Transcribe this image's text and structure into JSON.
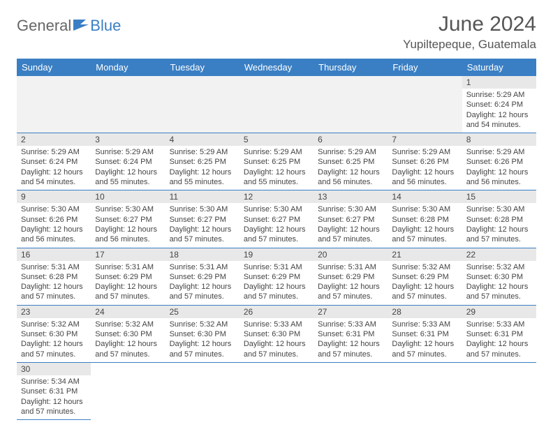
{
  "brand": {
    "part1": "General",
    "part2": "Blue",
    "icon_color": "#3a7fc4",
    "text_color": "#666666"
  },
  "title": "June 2024",
  "location": "Yupiltepeque, Guatemala",
  "colors": {
    "header_bg": "#3a7fc4",
    "header_text": "#ffffff",
    "daynum_bg": "#e8e8e8",
    "divider": "#3a7fc4",
    "body_text": "#444444"
  },
  "weekdays": [
    "Sunday",
    "Monday",
    "Tuesday",
    "Wednesday",
    "Thursday",
    "Friday",
    "Saturday"
  ],
  "weeks": [
    [
      null,
      null,
      null,
      null,
      null,
      null,
      {
        "n": "1",
        "sunrise": "Sunrise: 5:29 AM",
        "sunset": "Sunset: 6:24 PM",
        "daylight": "Daylight: 12 hours and 54 minutes."
      }
    ],
    [
      {
        "n": "2",
        "sunrise": "Sunrise: 5:29 AM",
        "sunset": "Sunset: 6:24 PM",
        "daylight": "Daylight: 12 hours and 54 minutes."
      },
      {
        "n": "3",
        "sunrise": "Sunrise: 5:29 AM",
        "sunset": "Sunset: 6:24 PM",
        "daylight": "Daylight: 12 hours and 55 minutes."
      },
      {
        "n": "4",
        "sunrise": "Sunrise: 5:29 AM",
        "sunset": "Sunset: 6:25 PM",
        "daylight": "Daylight: 12 hours and 55 minutes."
      },
      {
        "n": "5",
        "sunrise": "Sunrise: 5:29 AM",
        "sunset": "Sunset: 6:25 PM",
        "daylight": "Daylight: 12 hours and 55 minutes."
      },
      {
        "n": "6",
        "sunrise": "Sunrise: 5:29 AM",
        "sunset": "Sunset: 6:25 PM",
        "daylight": "Daylight: 12 hours and 56 minutes."
      },
      {
        "n": "7",
        "sunrise": "Sunrise: 5:29 AM",
        "sunset": "Sunset: 6:26 PM",
        "daylight": "Daylight: 12 hours and 56 minutes."
      },
      {
        "n": "8",
        "sunrise": "Sunrise: 5:29 AM",
        "sunset": "Sunset: 6:26 PM",
        "daylight": "Daylight: 12 hours and 56 minutes."
      }
    ],
    [
      {
        "n": "9",
        "sunrise": "Sunrise: 5:30 AM",
        "sunset": "Sunset: 6:26 PM",
        "daylight": "Daylight: 12 hours and 56 minutes."
      },
      {
        "n": "10",
        "sunrise": "Sunrise: 5:30 AM",
        "sunset": "Sunset: 6:27 PM",
        "daylight": "Daylight: 12 hours and 56 minutes."
      },
      {
        "n": "11",
        "sunrise": "Sunrise: 5:30 AM",
        "sunset": "Sunset: 6:27 PM",
        "daylight": "Daylight: 12 hours and 57 minutes."
      },
      {
        "n": "12",
        "sunrise": "Sunrise: 5:30 AM",
        "sunset": "Sunset: 6:27 PM",
        "daylight": "Daylight: 12 hours and 57 minutes."
      },
      {
        "n": "13",
        "sunrise": "Sunrise: 5:30 AM",
        "sunset": "Sunset: 6:27 PM",
        "daylight": "Daylight: 12 hours and 57 minutes."
      },
      {
        "n": "14",
        "sunrise": "Sunrise: 5:30 AM",
        "sunset": "Sunset: 6:28 PM",
        "daylight": "Daylight: 12 hours and 57 minutes."
      },
      {
        "n": "15",
        "sunrise": "Sunrise: 5:30 AM",
        "sunset": "Sunset: 6:28 PM",
        "daylight": "Daylight: 12 hours and 57 minutes."
      }
    ],
    [
      {
        "n": "16",
        "sunrise": "Sunrise: 5:31 AM",
        "sunset": "Sunset: 6:28 PM",
        "daylight": "Daylight: 12 hours and 57 minutes."
      },
      {
        "n": "17",
        "sunrise": "Sunrise: 5:31 AM",
        "sunset": "Sunset: 6:29 PM",
        "daylight": "Daylight: 12 hours and 57 minutes."
      },
      {
        "n": "18",
        "sunrise": "Sunrise: 5:31 AM",
        "sunset": "Sunset: 6:29 PM",
        "daylight": "Daylight: 12 hours and 57 minutes."
      },
      {
        "n": "19",
        "sunrise": "Sunrise: 5:31 AM",
        "sunset": "Sunset: 6:29 PM",
        "daylight": "Daylight: 12 hours and 57 minutes."
      },
      {
        "n": "20",
        "sunrise": "Sunrise: 5:31 AM",
        "sunset": "Sunset: 6:29 PM",
        "daylight": "Daylight: 12 hours and 57 minutes."
      },
      {
        "n": "21",
        "sunrise": "Sunrise: 5:32 AM",
        "sunset": "Sunset: 6:29 PM",
        "daylight": "Daylight: 12 hours and 57 minutes."
      },
      {
        "n": "22",
        "sunrise": "Sunrise: 5:32 AM",
        "sunset": "Sunset: 6:30 PM",
        "daylight": "Daylight: 12 hours and 57 minutes."
      }
    ],
    [
      {
        "n": "23",
        "sunrise": "Sunrise: 5:32 AM",
        "sunset": "Sunset: 6:30 PM",
        "daylight": "Daylight: 12 hours and 57 minutes."
      },
      {
        "n": "24",
        "sunrise": "Sunrise: 5:32 AM",
        "sunset": "Sunset: 6:30 PM",
        "daylight": "Daylight: 12 hours and 57 minutes."
      },
      {
        "n": "25",
        "sunrise": "Sunrise: 5:32 AM",
        "sunset": "Sunset: 6:30 PM",
        "daylight": "Daylight: 12 hours and 57 minutes."
      },
      {
        "n": "26",
        "sunrise": "Sunrise: 5:33 AM",
        "sunset": "Sunset: 6:30 PM",
        "daylight": "Daylight: 12 hours and 57 minutes."
      },
      {
        "n": "27",
        "sunrise": "Sunrise: 5:33 AM",
        "sunset": "Sunset: 6:31 PM",
        "daylight": "Daylight: 12 hours and 57 minutes."
      },
      {
        "n": "28",
        "sunrise": "Sunrise: 5:33 AM",
        "sunset": "Sunset: 6:31 PM",
        "daylight": "Daylight: 12 hours and 57 minutes."
      },
      {
        "n": "29",
        "sunrise": "Sunrise: 5:33 AM",
        "sunset": "Sunset: 6:31 PM",
        "daylight": "Daylight: 12 hours and 57 minutes."
      }
    ],
    [
      {
        "n": "30",
        "sunrise": "Sunrise: 5:34 AM",
        "sunset": "Sunset: 6:31 PM",
        "daylight": "Daylight: 12 hours and 57 minutes."
      },
      null,
      null,
      null,
      null,
      null,
      null
    ]
  ]
}
